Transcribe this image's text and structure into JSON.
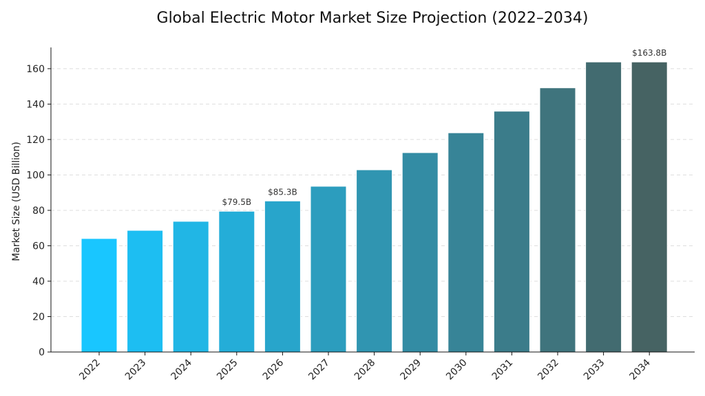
{
  "chart_data": {
    "type": "bar",
    "title": "Global Electric Motor Market Size Projection (2022–2034)",
    "xlabel": "",
    "ylabel": "Market Size (USD Billion)",
    "ylim": [
      0,
      172
    ],
    "yticks": [
      0,
      20,
      40,
      60,
      80,
      100,
      120,
      140,
      160
    ],
    "grid": "horizontal",
    "categories": [
      "2022",
      "2023",
      "2024",
      "2025",
      "2026",
      "2027",
      "2028",
      "2029",
      "2030",
      "2031",
      "2032",
      "2033",
      "2034"
    ],
    "values": [
      64.1,
      68.7,
      73.8,
      79.5,
      85.3,
      93.6,
      102.9,
      112.6,
      123.8,
      136.0,
      149.2,
      163.8,
      163.8
    ],
    "data_labels": [
      {
        "index": 3,
        "text": "$79.5B"
      },
      {
        "index": 4,
        "text": "$85.3B"
      },
      {
        "index": 12,
        "text": "$163.8B"
      }
    ],
    "colors": {
      "gradient_start": "#19c6ff",
      "gradient_end": "#466363",
      "bar_edge": "#ffffff"
    }
  }
}
